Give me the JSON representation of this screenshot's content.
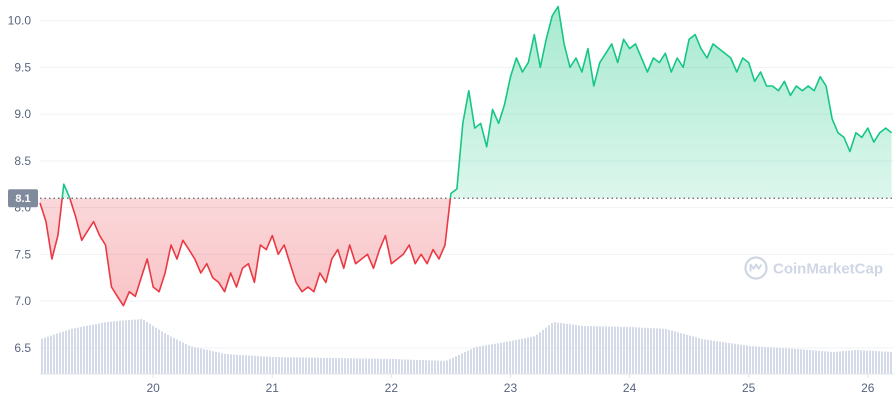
{
  "chart_data": {
    "type": "line",
    "baseline": 8.1,
    "baseline_label": "8.1",
    "y_ticks": [
      "10.0",
      "9.5",
      "9.0",
      "8.5",
      "8.0",
      "7.5",
      "7.0",
      "6.5"
    ],
    "y_tick_values": [
      10.0,
      9.5,
      9.0,
      8.5,
      8.0,
      7.5,
      7.0,
      6.5
    ],
    "x_ticks": [
      "20",
      "21",
      "22",
      "23",
      "24",
      "25",
      "26"
    ],
    "x_tick_values": [
      20,
      21,
      22,
      23,
      24,
      25,
      26
    ],
    "xlim": [
      19.05,
      26.22
    ],
    "ylim": [
      6.22,
      10.22
    ],
    "grid": true,
    "colors": {
      "up": "#16c784",
      "down": "#ea3943",
      "volume": "#cfd6e4",
      "grid": "#eff2f5",
      "badge": "#808a9d"
    },
    "series": [
      {
        "x": [
          19.05,
          19.1,
          19.15,
          19.2,
          19.25,
          19.3,
          19.35,
          19.4,
          19.45,
          19.5,
          19.55,
          19.6,
          19.65,
          19.7,
          19.75,
          19.8,
          19.85,
          19.9,
          19.95,
          20.0,
          20.05,
          20.1,
          20.15,
          20.2,
          20.25,
          20.3,
          20.35,
          20.4,
          20.45,
          20.5,
          20.55,
          20.6,
          20.65,
          20.7,
          20.75,
          20.8,
          20.85,
          20.9,
          20.95,
          21.0,
          21.05,
          21.1,
          21.15,
          21.2,
          21.25,
          21.3,
          21.35,
          21.4,
          21.45,
          21.5,
          21.55,
          21.6,
          21.65,
          21.7,
          21.75,
          21.8,
          21.85,
          21.9,
          21.95,
          22.0,
          22.05,
          22.1,
          22.15,
          22.2,
          22.25,
          22.3,
          22.35,
          22.4,
          22.45,
          22.5,
          22.55,
          22.6,
          22.65,
          22.7,
          22.75,
          22.8,
          22.85,
          22.9,
          22.95,
          23.0,
          23.05,
          23.1,
          23.15,
          23.2,
          23.25,
          23.3,
          23.35,
          23.4,
          23.45,
          23.5,
          23.55,
          23.6,
          23.65,
          23.7,
          23.75,
          23.8,
          23.85,
          23.9,
          23.95,
          24.0,
          24.05,
          24.1,
          24.15,
          24.2,
          24.25,
          24.3,
          24.35,
          24.4,
          24.45,
          24.5,
          24.55,
          24.6,
          24.65,
          24.7,
          24.75,
          24.8,
          24.85,
          24.9,
          24.95,
          25.0,
          25.05,
          25.1,
          25.15,
          25.2,
          25.25,
          25.3,
          25.35,
          25.4,
          25.45,
          25.5,
          25.55,
          25.6,
          25.65,
          25.7,
          25.75,
          25.8,
          25.85,
          25.9,
          25.95,
          26.0,
          26.05,
          26.1,
          26.15,
          26.2
        ],
        "values": [
          8.05,
          7.85,
          7.45,
          7.7,
          8.25,
          8.1,
          7.9,
          7.65,
          7.75,
          7.85,
          7.7,
          7.6,
          7.15,
          7.05,
          6.95,
          7.1,
          7.05,
          7.25,
          7.45,
          7.15,
          7.1,
          7.3,
          7.6,
          7.45,
          7.65,
          7.55,
          7.45,
          7.3,
          7.4,
          7.25,
          7.2,
          7.1,
          7.3,
          7.15,
          7.35,
          7.4,
          7.2,
          7.6,
          7.55,
          7.7,
          7.5,
          7.6,
          7.4,
          7.2,
          7.1,
          7.15,
          7.1,
          7.3,
          7.2,
          7.45,
          7.55,
          7.35,
          7.6,
          7.4,
          7.45,
          7.5,
          7.35,
          7.55,
          7.7,
          7.4,
          7.45,
          7.5,
          7.6,
          7.4,
          7.5,
          7.4,
          7.55,
          7.45,
          7.6,
          8.15,
          8.2,
          8.9,
          9.25,
          8.85,
          8.9,
          8.65,
          9.05,
          8.9,
          9.1,
          9.4,
          9.6,
          9.45,
          9.55,
          9.85,
          9.5,
          9.8,
          10.05,
          10.15,
          9.75,
          9.5,
          9.6,
          9.45,
          9.7,
          9.3,
          9.55,
          9.65,
          9.75,
          9.55,
          9.8,
          9.7,
          9.75,
          9.6,
          9.45,
          9.6,
          9.55,
          9.65,
          9.45,
          9.6,
          9.5,
          9.8,
          9.85,
          9.7,
          9.6,
          9.75,
          9.7,
          9.65,
          9.6,
          9.45,
          9.6,
          9.55,
          9.35,
          9.45,
          9.3,
          9.3,
          9.25,
          9.35,
          9.2,
          9.3,
          9.25,
          9.3,
          9.25,
          9.4,
          9.3,
          8.95,
          8.8,
          8.75,
          8.6,
          8.8,
          8.75,
          8.85,
          8.7,
          8.8,
          8.85,
          8.8
        ]
      },
      {
        "name": "volume",
        "x": [
          19.05,
          19.3,
          19.6,
          19.9,
          20.1,
          20.3,
          20.6,
          21.0,
          21.5,
          22.0,
          22.45,
          22.7,
          23.0,
          23.2,
          23.35,
          23.6,
          24.0,
          24.3,
          24.6,
          25.0,
          25.4,
          25.7,
          25.9,
          26.2
        ],
        "values": [
          0.35,
          0.45,
          0.52,
          0.55,
          0.4,
          0.28,
          0.2,
          0.17,
          0.16,
          0.15,
          0.13,
          0.27,
          0.33,
          0.38,
          0.52,
          0.48,
          0.47,
          0.45,
          0.35,
          0.28,
          0.25,
          0.22,
          0.24,
          0.22
        ]
      }
    ],
    "watermark": "CoinMarketCap"
  }
}
